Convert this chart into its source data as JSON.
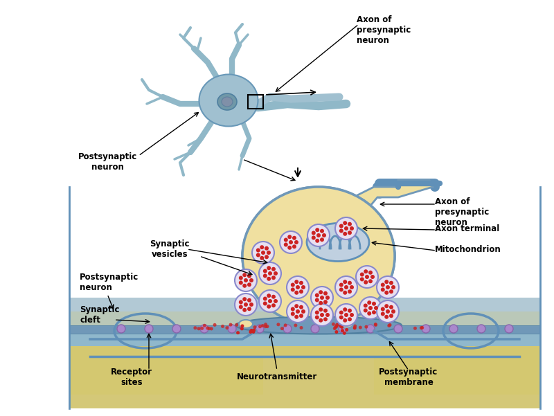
{
  "background_color": "#ffffff",
  "fig_width": 8.0,
  "fig_height": 6.01,
  "labels": {
    "axon_presynaptic_top": "Axon of\npresynaptic\nneuron",
    "postsynaptic_neuron_top": "Postsynaptic\nneuron",
    "axon_presynaptic_bottom": "Axon of\npresynaptic\nneuron",
    "axon_terminal": "Axon terminal",
    "mitochondrion": "Mitochondrion",
    "synaptic_vesicles": "Synaptic\nvesicles",
    "postsynaptic_neuron_bottom": "Postsynaptic\nneuron",
    "synaptic_cleft": "Synaptic\ncleft",
    "receptor_sites": "Receptor\nsites",
    "neurotransmitter": "Neurotransmitter",
    "postsynaptic_membrane": "Postsynaptic\nmembrane"
  },
  "colors": {
    "neuron_body": "#8ab8c8",
    "neuron_body_light": "#a8ccd8",
    "axon_terminal_fill": "#f0e0a0",
    "axon_terminal_border": "#8ab8c8",
    "mitochondrion_fill": "#c8d8e8",
    "mitochondrion_border": "#6898b8",
    "vesicle_fill": "#e8e0f0",
    "vesicle_border": "#8888cc",
    "vesicle_dot": "#cc3333",
    "postsynaptic_layer": "#c8d8e0",
    "postsynaptic_fill": "#e8d890",
    "receptor_color": "#9988bb",
    "synaptic_cleft_fill": "#e8d890",
    "neuron_top_fill": "#8ab8c8",
    "neuron_top_light": "#b0ccd8",
    "dendrite_color": "#90b8c8",
    "label_color": "#000000",
    "arrow_color": "#000000",
    "outline_color": "#6898b8"
  },
  "fontsize": {
    "label": 8.5,
    "label_bold": true
  }
}
